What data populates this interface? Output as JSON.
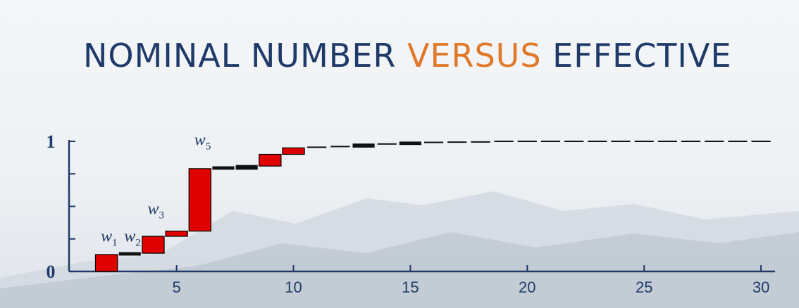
{
  "title": {
    "part1": "NOMINAL NUMBER ",
    "part2": "VERSUS",
    "part3": " EFFECTIVE"
  },
  "colors": {
    "title": "#1f3a68",
    "accent": "#e07a2a",
    "box": "#e00000",
    "axis": "#1f3a68",
    "dash": "#111111"
  },
  "chart_data": {
    "type": "bar",
    "xlim": [
      0.4,
      30.6
    ],
    "ylim": [
      0,
      1
    ],
    "x_ticks": [
      5,
      10,
      15,
      20,
      25,
      30
    ],
    "x_tick_labels": [
      "5",
      "10",
      "15",
      "20",
      "25",
      "30"
    ],
    "y_ticks": [
      0,
      0.25,
      0.5,
      0.75,
      1
    ],
    "y_tick_labels": [
      {
        "value": 0,
        "label": "0"
      },
      {
        "value": 1,
        "label": "1"
      }
    ],
    "steps": [
      {
        "x": 2,
        "bottom": 0.0,
        "top": 0.13
      },
      {
        "x": 3,
        "bottom": 0.13,
        "top": 0.14
      },
      {
        "x": 4,
        "bottom": 0.14,
        "top": 0.27
      },
      {
        "x": 5,
        "bottom": 0.27,
        "top": 0.31
      },
      {
        "x": 6,
        "bottom": 0.31,
        "top": 0.79
      },
      {
        "x": 7,
        "bottom": 0.79,
        "top": 0.8
      },
      {
        "x": 8,
        "bottom": 0.79,
        "top": 0.81
      },
      {
        "x": 9,
        "bottom": 0.81,
        "top": 0.9
      },
      {
        "x": 10,
        "bottom": 0.9,
        "top": 0.95
      },
      {
        "x": 11,
        "bottom": 0.95,
        "top": 0.955
      },
      {
        "x": 12,
        "bottom": 0.955,
        "top": 0.96
      },
      {
        "x": 13,
        "bottom": 0.96,
        "top": 0.975
      },
      {
        "x": 14,
        "bottom": 0.975,
        "top": 0.98
      },
      {
        "x": 15,
        "bottom": 0.98,
        "top": 0.99
      },
      {
        "x": 16,
        "bottom": 0.99,
        "top": 0.992
      },
      {
        "x": 17,
        "bottom": 0.992,
        "top": 0.994
      },
      {
        "x": 18,
        "bottom": 0.994,
        "top": 0.995
      },
      {
        "x": 19,
        "bottom": 0.995,
        "top": 1.0
      },
      {
        "x": 20,
        "bottom": 1.0,
        "top": 1.0
      },
      {
        "x": 21,
        "bottom": 1.0,
        "top": 1.0
      },
      {
        "x": 22,
        "bottom": 1.0,
        "top": 1.0
      },
      {
        "x": 23,
        "bottom": 1.0,
        "top": 1.0
      },
      {
        "x": 24,
        "bottom": 1.0,
        "top": 1.0
      },
      {
        "x": 25,
        "bottom": 1.0,
        "top": 1.0
      },
      {
        "x": 26,
        "bottom": 1.0,
        "top": 1.0
      },
      {
        "x": 27,
        "bottom": 1.0,
        "top": 1.0
      },
      {
        "x": 28,
        "bottom": 1.0,
        "top": 1.0
      },
      {
        "x": 29,
        "bottom": 1.0,
        "top": 1.0
      },
      {
        "x": 30,
        "bottom": 1.0,
        "top": 1.0
      }
    ],
    "annotations": [
      {
        "base": "w",
        "sub": "1",
        "x": 2,
        "y": 0.23
      },
      {
        "base": "w",
        "sub": "2",
        "x": 3,
        "y": 0.23
      },
      {
        "base": "w",
        "sub": "3",
        "x": 4,
        "y": 0.44
      },
      {
        "base": "w",
        "sub": "5",
        "x": 6,
        "y": 0.97
      }
    ]
  }
}
